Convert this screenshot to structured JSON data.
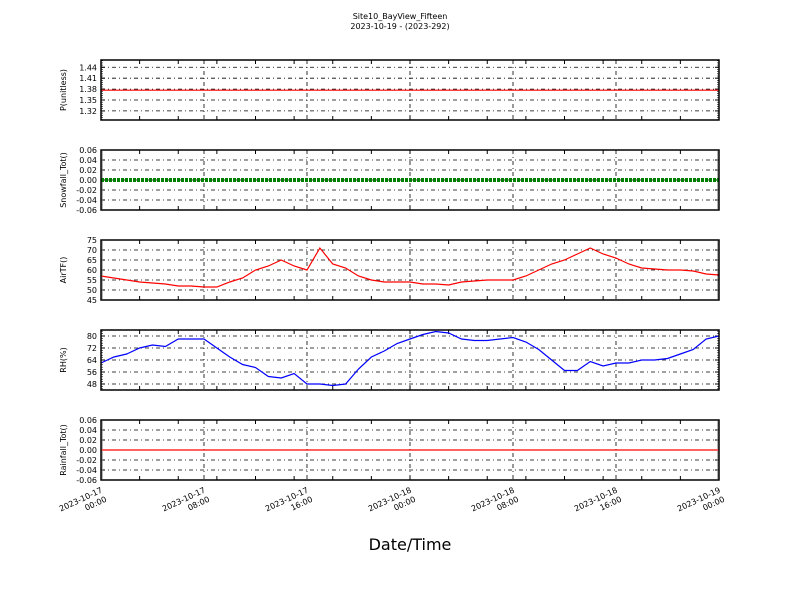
{
  "chart_data": {
    "type": "line",
    "title": "Site10_BayView_Fifteen",
    "subtitle": "2023-10-19 - (2023-292)",
    "xlabel": "Date/Time",
    "x_hours_range": [
      0,
      48
    ],
    "x_ticks": [
      {
        "hour": 0,
        "line1": "2023-10-17",
        "line2": "00:00"
      },
      {
        "hour": 8,
        "line1": "2023-10-17",
        "line2": "08:00"
      },
      {
        "hour": 16,
        "line1": "2023-10-17",
        "line2": "16:00"
      },
      {
        "hour": 24,
        "line1": "2023-10-18",
        "line2": "00:00"
      },
      {
        "hour": 32,
        "line1": "2023-10-18",
        "line2": "08:00"
      },
      {
        "hour": 40,
        "line1": "2023-10-18",
        "line2": "16:00"
      },
      {
        "hour": 48,
        "line1": "2023-10-19",
        "line2": "00:00"
      }
    ],
    "panels": [
      {
        "ylabel": "P(unitless)",
        "ylim": [
          1.295,
          1.46
        ],
        "ticks": [
          "1.32",
          "1.35",
          "1.38",
          "1.41",
          "1.44"
        ],
        "tickvals": [
          1.32,
          1.35,
          1.38,
          1.41,
          1.44
        ],
        "color": "#ff0000",
        "style": "line",
        "values": [
          1.377,
          1.377
        ]
      },
      {
        "ylabel": "Snowfall_Tot()",
        "ylim": [
          -0.06,
          0.06
        ],
        "ticks": [
          "-0.06",
          "-0.04",
          "-0.02",
          "0.00",
          "0.02",
          "0.04",
          "0.06"
        ],
        "tickvals": [
          -0.06,
          -0.04,
          -0.02,
          0,
          0.02,
          0.04,
          0.06
        ],
        "color": "#008000",
        "style": "dots",
        "values": [
          0,
          0
        ]
      },
      {
        "ylabel": "AirTF()",
        "ylim": [
          45,
          75
        ],
        "ticks": [
          "45",
          "50",
          "55",
          "60",
          "65",
          "70",
          "75"
        ],
        "tickvals": [
          45,
          50,
          55,
          60,
          65,
          70,
          75
        ],
        "color": "#ff0000",
        "style": "line",
        "values": [
          57,
          56,
          55,
          54,
          53.5,
          53,
          52,
          52,
          51.5,
          51.5,
          54,
          56,
          60,
          62,
          65,
          62,
          60,
          71,
          63,
          61,
          57,
          55,
          54,
          54,
          54,
          53,
          53,
          52.5,
          54,
          54.5,
          55,
          55,
          55,
          57,
          60,
          63,
          65,
          68,
          71,
          68,
          66,
          63,
          61,
          60.5,
          60,
          60,
          59.5,
          58,
          57.5
        ]
      },
      {
        "ylabel": "RH(%)",
        "ylim": [
          44,
          84
        ],
        "ticks": [
          "48",
          "56",
          "64",
          "72",
          "80"
        ],
        "tickvals": [
          48,
          56,
          64,
          72,
          80
        ],
        "color": "#0000ff",
        "style": "line",
        "values": [
          62,
          66,
          68,
          72,
          74,
          73,
          78,
          78,
          78,
          72,
          66,
          61,
          59,
          53,
          52,
          55,
          48,
          48,
          47,
          48,
          58,
          66,
          70,
          75,
          78,
          81,
          83,
          82,
          78,
          77,
          77,
          78,
          79,
          76,
          71,
          64,
          57,
          57,
          63,
          60,
          62,
          62,
          64,
          64,
          65,
          68,
          71,
          78,
          80
        ]
      },
      {
        "ylabel": "Rainfall_Tot()",
        "ylim": [
          -0.06,
          0.06
        ],
        "ticks": [
          "-0.06",
          "-0.04",
          "-0.02",
          "0.00",
          "0.02",
          "0.04",
          "0.06"
        ],
        "tickvals": [
          -0.06,
          -0.04,
          -0.02,
          0,
          0.02,
          0.04,
          0.06
        ],
        "color": "#ff0000",
        "style": "line",
        "values": [
          0,
          0
        ]
      }
    ]
  }
}
